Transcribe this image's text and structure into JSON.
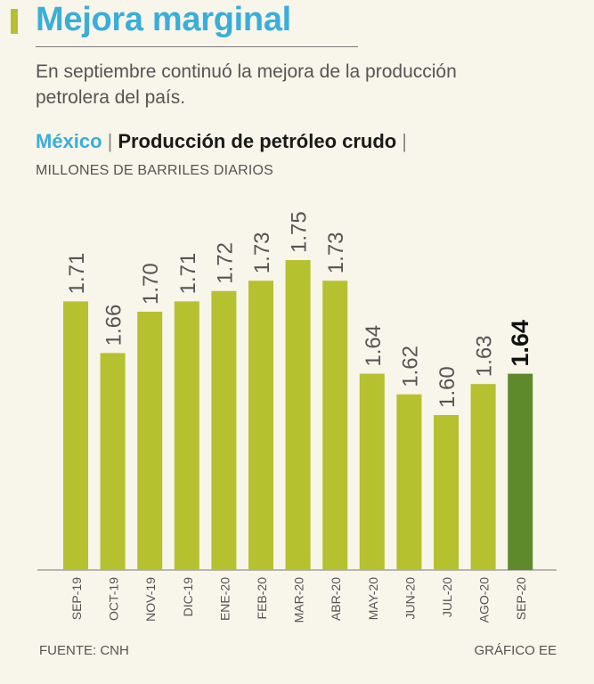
{
  "header": {
    "title": "Mejora marginal",
    "subtitle": "En septiembre continuó la mejora de la producción petrolera del país.",
    "country": "México",
    "separator": "|",
    "metric": "Producción de petróleo crudo",
    "units": "MILLONES DE BARRILES DIARIOS"
  },
  "footer": {
    "source": "FUENTE: CNH",
    "credit": "GRÁFICO EE"
  },
  "colors": {
    "bar": "#b5c12e",
    "highlight": "#5f8a2b",
    "title": "#3aaed8",
    "axis": "#555555"
  },
  "chart_data": {
    "type": "bar",
    "title": "Producción de petróleo crudo",
    "ylabel": "Millones de barriles diarios",
    "xlabel": "",
    "categories": [
      "SEP-19",
      "OCT-19",
      "NOV-19",
      "DIC-19",
      "ENE-20",
      "FEB-20",
      "MAR-20",
      "ABR-20",
      "MAY-20",
      "JUN-20",
      "JUL-20",
      "AGO-20",
      "SEP-20"
    ],
    "values": [
      1.71,
      1.66,
      1.7,
      1.71,
      1.72,
      1.73,
      1.75,
      1.73,
      1.64,
      1.62,
      1.6,
      1.63,
      1.64
    ],
    "labels": [
      "1.71",
      "1.66",
      "1.70",
      "1.71",
      "1.72",
      "1.73",
      "1.75",
      "1.73",
      "1.64",
      "1.62",
      "1.60",
      "1.63",
      "1.64"
    ],
    "highlight_index": 12,
    "ylim": [
      1.45,
      1.75
    ],
    "grid": false,
    "legend": "none"
  }
}
